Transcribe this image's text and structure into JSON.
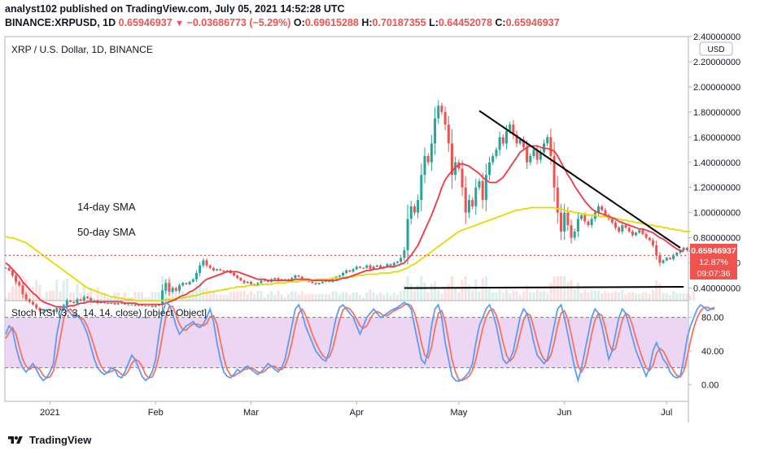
{
  "header": {
    "line1": "analyst102 published on TradingView.com, July 05, 2021 14:52:28 UTC",
    "symbol": "BINANCE:XRPUSD, 1D",
    "last": "0.65946937",
    "change": "−0.03686773 (−5.29%)",
    "o_label": "O:",
    "o": "0.69615288",
    "h_label": "H:",
    "h": "0.70187355",
    "l_label": "L:",
    "l": "0.64452078",
    "c_label": "C:",
    "c": "0.65946937"
  },
  "main_pane": {
    "legend": "XRP / U.S. Dollar, 1D, BINANCE",
    "currency": "USD",
    "annotations": [
      "14-day SMA",
      "50-day SMA"
    ],
    "price_badge": {
      "price": "0.65946937",
      "pct": "12.87%",
      "countdown": "09:07:36"
    }
  },
  "rsi_pane": {
    "legend": "Stoch RSI (3, 3, 14, 14, close) [object Object]"
  },
  "footer": {
    "brand": "TradingView"
  },
  "colors": {
    "up": "#26a69a",
    "down": "#ef5350",
    "sma14": "#f23645",
    "sma50": "#e6d400",
    "k_line": "#5b9cf6",
    "d_line": "#f7525f",
    "band": "#e1bee7",
    "trend": "#000000"
  },
  "chart_data": [
    {
      "type": "candlestick",
      "title": "XRP / U.S. Dollar, 1D, BINANCE",
      "y_axis_ticks": [
        "2.40000000",
        "2.20000000",
        "2.00000000",
        "1.80000000",
        "1.60000000",
        "1.40000000",
        "1.20000000",
        "1.00000000",
        "0.80000000",
        "0.60000000",
        "0.40000000"
      ],
      "ylim": [
        0.3,
        2.4
      ],
      "x_axis_labels": [
        "2021",
        "Feb",
        "Mar",
        "Apr",
        "May",
        "Jun",
        "Jul"
      ],
      "x_axis_dates": [
        "2021-01-01",
        "2021-02-01",
        "2021-03-01",
        "2021-04-01",
        "2021-05-01",
        "2021-06-01",
        "2021-07-01"
      ],
      "start_date": "2020-12-19",
      "end_date": "2021-07-05",
      "closes": [
        0.56,
        0.54,
        0.5,
        0.45,
        0.42,
        0.35,
        0.31,
        0.29,
        0.27,
        0.24,
        0.22,
        0.22,
        0.23,
        0.22,
        0.21,
        0.24,
        0.23,
        0.26,
        0.3,
        0.29,
        0.28,
        0.31,
        0.3,
        0.33,
        0.32,
        0.3,
        0.3,
        0.28,
        0.29,
        0.28,
        0.28,
        0.28,
        0.27,
        0.28,
        0.28,
        0.27,
        0.27,
        0.27,
        0.26,
        0.27,
        0.26,
        0.26,
        0.26,
        0.25,
        0.26,
        0.27,
        0.38,
        0.44,
        0.37,
        0.4,
        0.38,
        0.42,
        0.44,
        0.43,
        0.45,
        0.47,
        0.52,
        0.58,
        0.62,
        0.58,
        0.56,
        0.54,
        0.55,
        0.54,
        0.53,
        0.54,
        0.52,
        0.5,
        0.48,
        0.46,
        0.44,
        0.45,
        0.43,
        0.42,
        0.44,
        0.46,
        0.46,
        0.45,
        0.47,
        0.48,
        0.46,
        0.47,
        0.47,
        0.46,
        0.48,
        0.5,
        0.49,
        0.47,
        0.46,
        0.45,
        0.44,
        0.43,
        0.44,
        0.45,
        0.46,
        0.45,
        0.47,
        0.49,
        0.5,
        0.52,
        0.54,
        0.53,
        0.55,
        0.57,
        0.56,
        0.56,
        0.58,
        0.55,
        0.57,
        0.58,
        0.56,
        0.57,
        0.59,
        0.58,
        0.6,
        0.61,
        0.64,
        0.7,
        0.95,
        1.05,
        1.0,
        1.1,
        1.3,
        1.45,
        1.4,
        1.55,
        1.75,
        1.85,
        1.8,
        1.7,
        1.55,
        1.3,
        1.4,
        1.35,
        1.2,
        1.0,
        1.1,
        1.05,
        1.2,
        1.25,
        1.1,
        1.3,
        1.4,
        1.45,
        1.5,
        1.6,
        1.55,
        1.65,
        1.7,
        1.62,
        1.55,
        1.58,
        1.52,
        1.4,
        1.45,
        1.5,
        1.42,
        1.48,
        1.55,
        1.6,
        1.45,
        1.2,
        1.0,
        0.85,
        1.0,
        0.9,
        0.8,
        0.85,
        0.95,
        0.98,
        0.93,
        0.9,
        0.95,
        1.0,
        1.05,
        1.02,
        0.98,
        0.95,
        0.92,
        0.88,
        0.85,
        0.9,
        0.88,
        0.85,
        0.82,
        0.84,
        0.86,
        0.83,
        0.8,
        0.78,
        0.74,
        0.66,
        0.6,
        0.62,
        0.64,
        0.63,
        0.66,
        0.68,
        0.7,
        0.72,
        0.7,
        0.69,
        0.66
      ],
      "series": [
        {
          "name": "14-day SMA",
          "values": [
            0.6,
            0.58,
            0.55,
            0.52,
            0.49,
            0.45,
            0.42,
            0.39,
            0.36,
            0.34,
            0.31,
            0.29,
            0.28,
            0.27,
            0.26,
            0.25,
            0.25,
            0.25,
            0.25,
            0.26,
            0.26,
            0.27,
            0.28,
            0.28,
            0.29,
            0.29,
            0.29,
            0.29,
            0.29,
            0.29,
            0.29,
            0.29,
            0.29,
            0.29,
            0.29,
            0.28,
            0.28,
            0.28,
            0.28,
            0.27,
            0.27,
            0.27,
            0.27,
            0.27,
            0.27,
            0.27,
            0.27,
            0.28,
            0.29,
            0.3,
            0.31,
            0.33,
            0.34,
            0.35,
            0.37,
            0.38,
            0.4,
            0.42,
            0.45,
            0.47,
            0.48,
            0.49,
            0.5,
            0.51,
            0.52,
            0.53,
            0.53,
            0.53,
            0.53,
            0.52,
            0.51,
            0.5,
            0.49,
            0.48,
            0.47,
            0.47,
            0.47,
            0.46,
            0.46,
            0.46,
            0.46,
            0.46,
            0.46,
            0.46,
            0.46,
            0.47,
            0.47,
            0.47,
            0.47,
            0.47,
            0.46,
            0.46,
            0.46,
            0.46,
            0.46,
            0.46,
            0.46,
            0.46,
            0.47,
            0.48,
            0.48,
            0.49,
            0.5,
            0.51,
            0.52,
            0.53,
            0.54,
            0.54,
            0.55,
            0.55,
            0.56,
            0.56,
            0.57,
            0.57,
            0.57,
            0.58,
            0.59,
            0.6,
            0.63,
            0.66,
            0.7,
            0.74,
            0.8,
            0.86,
            0.92,
            0.98,
            1.05,
            1.12,
            1.2,
            1.26,
            1.3,
            1.33,
            1.36,
            1.38,
            1.39,
            1.38,
            1.37,
            1.35,
            1.33,
            1.31,
            1.28,
            1.26,
            1.24,
            1.24,
            1.24,
            1.26,
            1.28,
            1.32,
            1.36,
            1.4,
            1.44,
            1.48,
            1.5,
            1.52,
            1.53,
            1.53,
            1.53,
            1.52,
            1.51,
            1.51,
            1.5,
            1.49,
            1.45,
            1.4,
            1.35,
            1.3,
            1.26,
            1.21,
            1.17,
            1.13,
            1.09,
            1.06,
            1.03,
            1.01,
            1.0,
            0.99,
            0.98,
            0.97,
            0.96,
            0.95,
            0.93,
            0.92,
            0.91,
            0.9,
            0.89,
            0.88,
            0.87,
            0.87,
            0.86,
            0.85,
            0.84,
            0.82,
            0.8,
            0.79,
            0.77,
            0.75,
            0.73,
            0.71,
            0.7,
            0.69
          ]
        },
        {
          "name": "50-day SMA",
          "values": [
            0.81,
            0.8,
            0.8,
            0.79,
            0.78,
            0.77,
            0.76,
            0.74,
            0.72,
            0.7,
            0.68,
            0.66,
            0.64,
            0.62,
            0.6,
            0.58,
            0.56,
            0.54,
            0.52,
            0.5,
            0.48,
            0.46,
            0.44,
            0.42,
            0.4,
            0.39,
            0.38,
            0.37,
            0.36,
            0.35,
            0.34,
            0.33,
            0.33,
            0.32,
            0.32,
            0.31,
            0.31,
            0.31,
            0.3,
            0.3,
            0.3,
            0.3,
            0.3,
            0.3,
            0.3,
            0.3,
            0.3,
            0.31,
            0.31,
            0.31,
            0.32,
            0.32,
            0.32,
            0.33,
            0.33,
            0.34,
            0.34,
            0.35,
            0.36,
            0.36,
            0.37,
            0.37,
            0.38,
            0.38,
            0.39,
            0.39,
            0.4,
            0.4,
            0.41,
            0.41,
            0.41,
            0.42,
            0.42,
            0.42,
            0.42,
            0.43,
            0.43,
            0.43,
            0.43,
            0.44,
            0.44,
            0.44,
            0.44,
            0.45,
            0.45,
            0.45,
            0.45,
            0.46,
            0.46,
            0.46,
            0.46,
            0.47,
            0.47,
            0.47,
            0.47,
            0.47,
            0.48,
            0.48,
            0.48,
            0.48,
            0.49,
            0.49,
            0.49,
            0.5,
            0.5,
            0.5,
            0.51,
            0.51,
            0.51,
            0.51,
            0.52,
            0.52,
            0.52,
            0.52,
            0.53,
            0.53,
            0.54,
            0.55,
            0.56,
            0.58,
            0.59,
            0.61,
            0.63,
            0.65,
            0.67,
            0.69,
            0.71,
            0.73,
            0.75,
            0.77,
            0.79,
            0.81,
            0.83,
            0.85,
            0.86,
            0.87,
            0.88,
            0.89,
            0.9,
            0.91,
            0.92,
            0.93,
            0.94,
            0.95,
            0.96,
            0.97,
            0.98,
            0.99,
            1.0,
            1.01,
            1.02,
            1.02,
            1.03,
            1.03,
            1.04,
            1.04,
            1.04,
            1.04,
            1.04,
            1.04,
            1.04,
            1.04,
            1.03,
            1.03,
            1.02,
            1.01,
            1.01,
            1.0,
            1.0,
            0.99,
            0.99,
            0.98,
            0.98,
            0.98,
            0.97,
            0.97,
            0.97,
            0.96,
            0.96,
            0.95,
            0.95,
            0.94,
            0.94,
            0.93,
            0.93,
            0.92,
            0.92,
            0.91,
            0.91,
            0.9,
            0.9,
            0.89,
            0.89,
            0.88,
            0.88,
            0.87,
            0.87,
            0.86,
            0.86,
            0.85,
            0.85,
            0.85
          ]
        }
      ],
      "trendline_upper": {
        "from": {
          "date": "2021-05-07",
          "price": 1.81
        },
        "to": {
          "date": "2021-07-05",
          "price": 0.72
        }
      },
      "trendline_lower": {
        "from": {
          "date": "2021-04-15",
          "price": 0.4
        },
        "to": {
          "date": "2021-07-06",
          "price": 0.41
        }
      },
      "last_price": 0.65946937
    },
    {
      "type": "line",
      "title": "Stoch RSI (3, 3, 14, 14, close) [object Object]",
      "y_axis_ticks": [
        "80.00",
        "40.00",
        "0.00"
      ],
      "ylim": [
        -20,
        100
      ],
      "band": [
        20,
        80
      ],
      "series": [
        {
          "name": "K",
          "values": [
            60,
            70,
            65,
            45,
            30,
            20,
            15,
            20,
            25,
            18,
            10,
            5,
            8,
            15,
            25,
            60,
            80,
            95,
            90,
            85,
            80,
            82,
            78,
            70,
            60,
            45,
            30,
            20,
            15,
            12,
            15,
            20,
            18,
            10,
            8,
            15,
            25,
            35,
            30,
            20,
            10,
            5,
            8,
            15,
            30,
            60,
            85,
            98,
            95,
            85,
            70,
            60,
            65,
            70,
            72,
            75,
            70,
            68,
            72,
            80,
            90,
            75,
            50,
            30,
            15,
            10,
            8,
            12,
            18,
            15,
            20,
            22,
            18,
            15,
            12,
            15,
            20,
            25,
            22,
            18,
            15,
            20,
            30,
            50,
            70,
            90,
            95,
            85,
            70,
            60,
            50,
            40,
            35,
            30,
            28,
            40,
            60,
            80,
            92,
            95,
            90,
            85,
            80,
            70,
            60,
            70,
            80,
            85,
            90,
            85,
            80,
            82,
            85,
            88,
            90,
            92,
            95,
            98,
            95,
            90,
            70,
            50,
            30,
            25,
            40,
            70,
            90,
            95,
            80,
            50,
            30,
            10,
            5,
            4,
            6,
            10,
            15,
            25,
            50,
            70,
            80,
            90,
            95,
            85,
            70,
            50,
            30,
            25,
            30,
            40,
            60,
            80,
            90,
            85,
            70,
            50,
            35,
            30,
            25,
            30,
            50,
            70,
            90,
            95,
            80,
            60,
            40,
            20,
            5,
            20,
            40,
            60,
            80,
            90,
            85,
            70,
            50,
            30,
            40,
            60,
            80,
            90,
            85,
            70,
            55,
            40,
            30,
            20,
            10,
            20,
            40,
            50,
            40,
            30,
            25,
            15,
            10,
            8,
            10,
            30,
            55,
            70,
            80,
            90,
            95,
            92,
            88,
            90,
            92
          ]
        },
        {
          "name": "D",
          "values": [
            55,
            62,
            68,
            60,
            45,
            30,
            22,
            18,
            21,
            21,
            18,
            11,
            8,
            9,
            16,
            33,
            55,
            78,
            88,
            90,
            85,
            82,
            80,
            77,
            69,
            58,
            45,
            32,
            22,
            16,
            14,
            16,
            18,
            16,
            12,
            11,
            16,
            25,
            30,
            28,
            22,
            12,
            8,
            9,
            18,
            35,
            58,
            81,
            93,
            93,
            83,
            72,
            65,
            65,
            69,
            72,
            72,
            71,
            70,
            73,
            81,
            82,
            72,
            52,
            32,
            18,
            11,
            10,
            13,
            15,
            18,
            19,
            20,
            18,
            15,
            14,
            16,
            20,
            22,
            22,
            18,
            18,
            22,
            33,
            50,
            70,
            85,
            90,
            83,
            72,
            60,
            50,
            42,
            35,
            31,
            33,
            43,
            60,
            77,
            89,
            92,
            90,
            85,
            78,
            70,
            67,
            70,
            78,
            85,
            87,
            85,
            82,
            82,
            85,
            88,
            90,
            92,
            95,
            96,
            94,
            85,
            70,
            50,
            35,
            32,
            45,
            67,
            85,
            88,
            75,
            53,
            30,
            15,
            6,
            5,
            7,
            10,
            17,
            30,
            48,
            67,
            80,
            88,
            90,
            83,
            68,
            50,
            35,
            28,
            32,
            43,
            60,
            77,
            85,
            82,
            68,
            52,
            38,
            30,
            28,
            35,
            50,
            70,
            85,
            88,
            78,
            60,
            40,
            22,
            15,
            22,
            40,
            60,
            77,
            85,
            82,
            68,
            50,
            40,
            43,
            60,
            77,
            85,
            82,
            70,
            55,
            42,
            30,
            20,
            17,
            23,
            37,
            43,
            40,
            32,
            23,
            17,
            11,
            9,
            16,
            32,
            52,
            68,
            80,
            88,
            92,
            92,
            90,
            90
          ]
        }
      ],
      "x_axis_labels": [
        "2021",
        "Feb",
        "Mar",
        "Apr",
        "May",
        "Jun",
        "Jul"
      ]
    }
  ]
}
